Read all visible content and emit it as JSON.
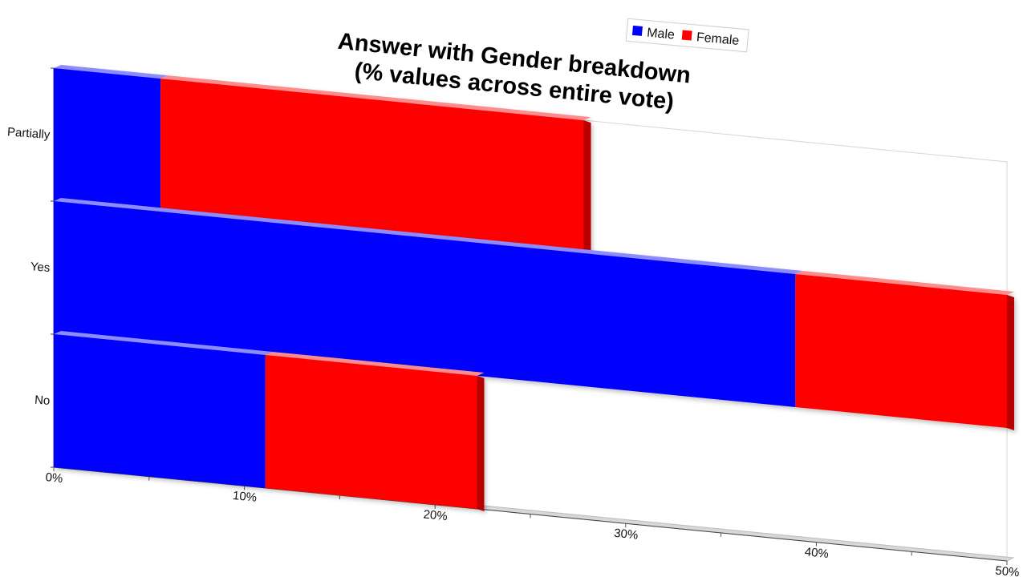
{
  "chart_data": {
    "type": "bar",
    "orientation": "horizontal",
    "stacked": true,
    "style": "3d-perspective",
    "title": [
      "Answer with Gender breakdown",
      "(% values across entire vote)"
    ],
    "categories": [
      "Partially",
      "Yes",
      "No"
    ],
    "series": [
      {
        "name": "Male",
        "color": "#0000ff",
        "values": [
          5.6,
          38.9,
          11.1
        ]
      },
      {
        "name": "Female",
        "color": "#ff0000",
        "values": [
          22.2,
          11.1,
          11.1
        ]
      }
    ],
    "xlim": [
      0,
      50
    ],
    "x_ticks": [
      "0%",
      "10%",
      "20%",
      "30%",
      "40%",
      "50%"
    ],
    "legend": {
      "position": "top",
      "entries": [
        "Male",
        "Female"
      ]
    },
    "grid": false,
    "xlabel": "",
    "ylabel": ""
  }
}
